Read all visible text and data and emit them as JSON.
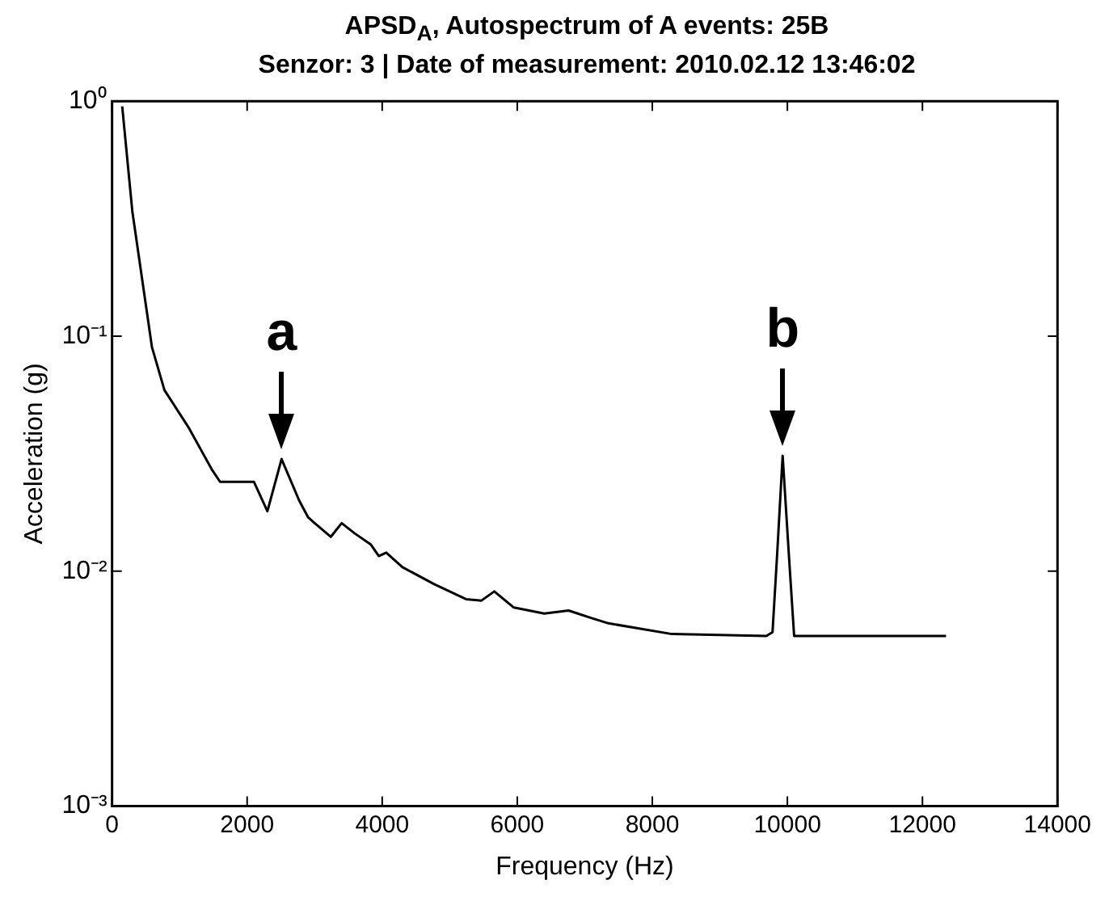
{
  "chart_data": {
    "type": "line",
    "title": "APSD$_{A}$, Autospectrum of A events: 25B",
    "subtitle": "Senzor: 3 | Date of measurement: 2010.02.12 13:46:02",
    "xlabel": "Frequency (Hz)",
    "ylabel": "Acceleration (g)",
    "log": "y",
    "grid": false,
    "legend": false,
    "marker": "none",
    "line_style": "solid",
    "xlim": [
      0,
      14000
    ],
    "xticks": [
      0,
      2000,
      4000,
      6000,
      8000,
      10000,
      12000,
      14000
    ],
    "ylim": [
      0.001,
      1
    ],
    "yticks": [
      {
        "value": 0.001,
        "label": "10⁻³"
      },
      {
        "value": 0.01,
        "label": "10⁻²"
      },
      {
        "value": 0.1,
        "label": "10⁻¹"
      },
      {
        "value": 1,
        "label": "10⁰"
      }
    ],
    "annotations": [
      {
        "text": "a",
        "x": 2510,
        "y": 0.03
      },
      {
        "text": "b",
        "x": 9930,
        "y": 0.031
      }
    ],
    "series": [
      {
        "color": "#000000",
        "x": [
          150,
          300,
          590,
          775,
          1130,
          1480,
          1600,
          2100,
          2300,
          2510,
          2770,
          2900,
          3000,
          3240,
          3400,
          3590,
          3830,
          3950,
          4060,
          4300,
          4770,
          5240,
          5470,
          5660,
          5950,
          6400,
          6760,
          7110,
          7350,
          8290,
          9690,
          9780,
          9850,
          9930,
          10020,
          10100,
          12350
        ],
        "values": [
          0.95,
          0.34,
          0.09,
          0.059,
          0.041,
          0.027,
          0.024,
          0.024,
          0.018,
          0.03,
          0.02,
          0.017,
          0.016,
          0.014,
          0.016,
          0.0145,
          0.013,
          0.0116,
          0.012,
          0.0104,
          0.0088,
          0.0076,
          0.0075,
          0.0082,
          0.007,
          0.0066,
          0.0068,
          0.0063,
          0.006,
          0.0054,
          0.0053,
          0.0055,
          0.012,
          0.031,
          0.012,
          0.0053,
          0.0053
        ]
      }
    ]
  }
}
